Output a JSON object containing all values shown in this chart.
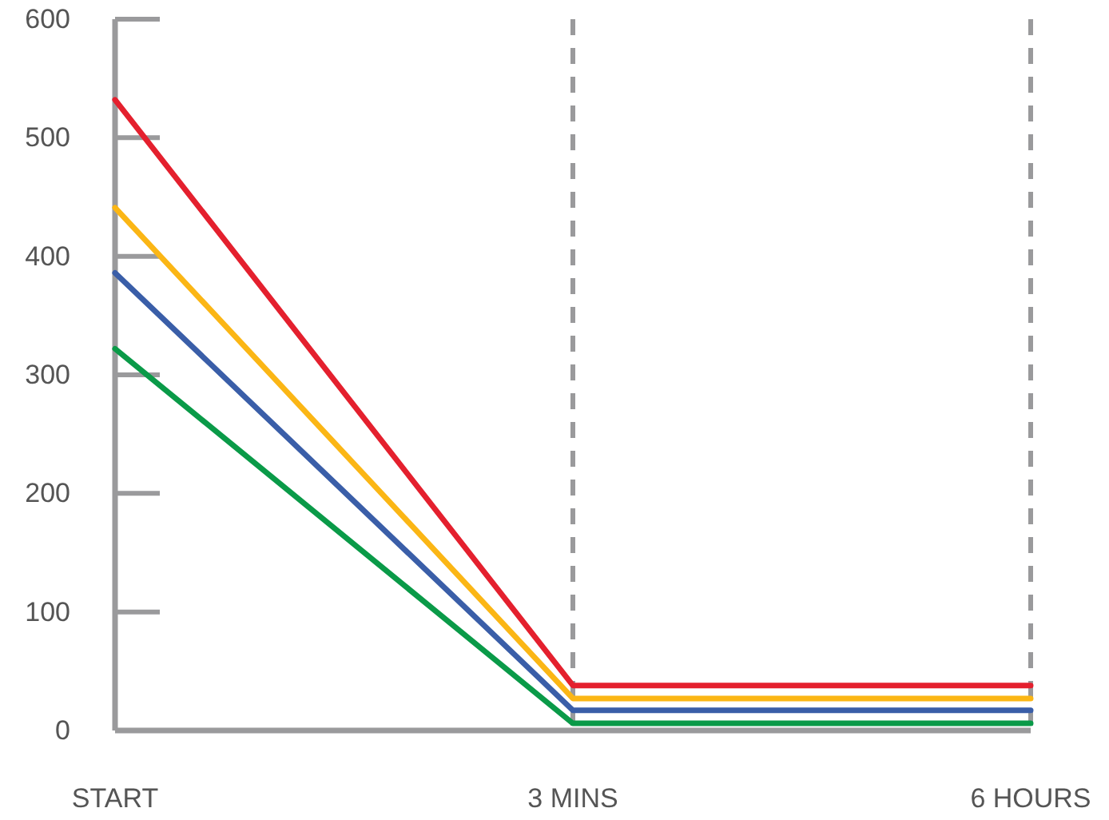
{
  "chart_data": {
    "type": "line",
    "categories": [
      "START",
      "3 MINS",
      "6 HOURS"
    ],
    "series": [
      {
        "color": "#e4202e",
        "values": [
          532,
          38,
          38
        ]
      },
      {
        "color": "#fbb615",
        "values": [
          441,
          27,
          27
        ]
      },
      {
        "color": "#3a5ea8",
        "values": [
          386,
          17,
          17
        ]
      },
      {
        "color": "#0a9a48",
        "values": [
          322,
          6,
          6
        ]
      }
    ],
    "ylim": [
      0,
      600
    ],
    "yticks": [
      0,
      100,
      200,
      300,
      400,
      500,
      600
    ],
    "grid": "x",
    "marker": "none",
    "line_style": "solid"
  }
}
